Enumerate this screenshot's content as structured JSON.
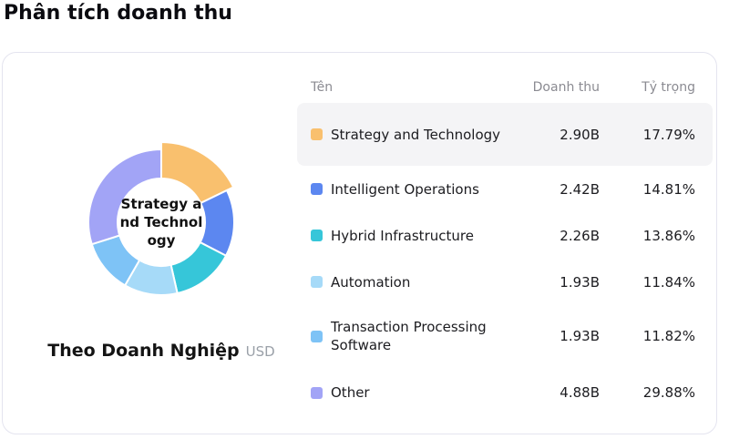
{
  "page": {
    "title": "Phân tích doanh thu"
  },
  "table": {
    "headers": {
      "name": "Tên",
      "revenue": "Doanh thu",
      "share": "Tỷ trọng"
    },
    "rows": [
      {
        "name": "Strategy and Technology",
        "revenue": "2.90B",
        "share": "17.79%"
      },
      {
        "name": "Intelligent Operations",
        "revenue": "2.42B",
        "share": "14.81%"
      },
      {
        "name": "Hybrid Infrastructure",
        "revenue": "2.26B",
        "share": "13.86%"
      },
      {
        "name": "Automation",
        "revenue": "1.93B",
        "share": "11.84%"
      },
      {
        "name": "Transaction Processing Software",
        "revenue": "1.93B",
        "share": "11.82%"
      },
      {
        "name": "Other",
        "revenue": "4.88B",
        "share": "29.88%"
      }
    ]
  },
  "chart_data": {
    "type": "pie",
    "donut": true,
    "title": "Theo Doanh Nghiệp",
    "unit": "USD",
    "categories": [
      "Strategy and Technology",
      "Intelligent Operations",
      "Hybrid Infrastructure",
      "Automation",
      "Transaction Processing Software",
      "Other"
    ],
    "values_pct": [
      17.79,
      14.81,
      13.86,
      11.84,
      11.82,
      29.88
    ],
    "values_revenue_billions": [
      2.9,
      2.42,
      2.26,
      1.93,
      1.93,
      4.88
    ],
    "colors": [
      "#F9C06E",
      "#5C87F0",
      "#36C6D9",
      "#A6DAF8",
      "#7EC3F6",
      "#A2A4F6"
    ],
    "start_angle_deg_from_north": 0,
    "direction": "clockwise",
    "inner_radius": 48,
    "outer_radius": 80,
    "highlighted_index": 0,
    "highlighted_outer_radius": 88,
    "center_label_lines": [
      "Strategy a",
      "nd Technol",
      "ogy"
    ]
  }
}
